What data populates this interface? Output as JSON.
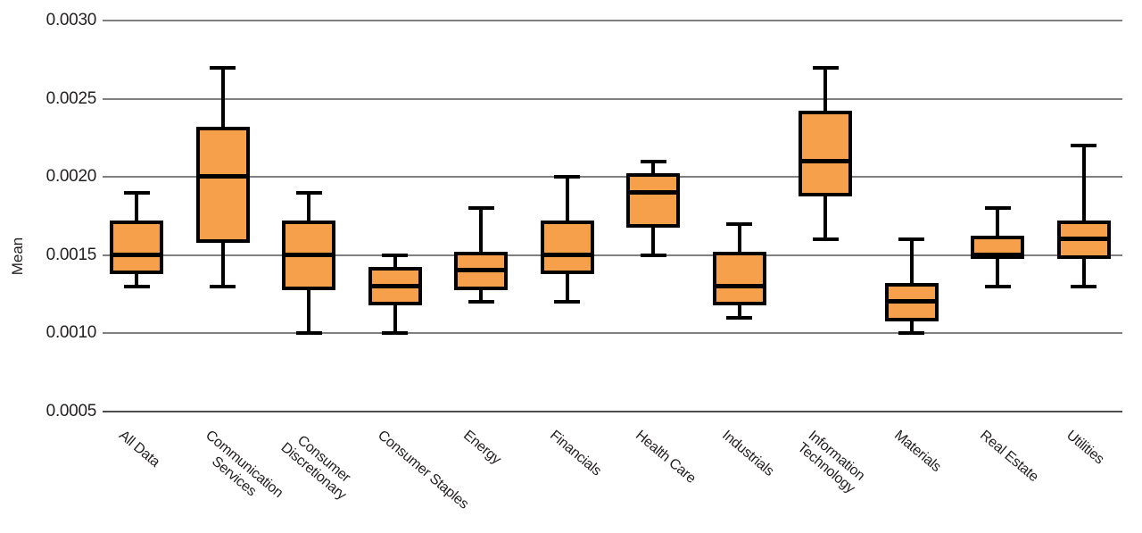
{
  "chart_data": {
    "type": "box",
    "title": "",
    "xlabel": "",
    "ylabel": "Mean",
    "ylim": [
      0.0005,
      0.003
    ],
    "grid": true,
    "legend": "none",
    "colors": {
      "box_fill": "#F7A04B",
      "box_edge": "#000000",
      "median": "#000000",
      "whisker": "#000000",
      "gridline": "#808080",
      "axis_line": "#4D4D4D",
      "text": "#231F20"
    },
    "y_ticks": [
      {
        "value": 0.003,
        "label": "0.0030"
      },
      {
        "value": 0.0025,
        "label": "0.0025"
      },
      {
        "value": 0.002,
        "label": "0.0020"
      },
      {
        "value": 0.0015,
        "label": "0.0015"
      },
      {
        "value": 0.001,
        "label": "0.0010"
      },
      {
        "value": 0.0005,
        "label": "0.0005"
      }
    ],
    "categories": [
      "All Data",
      "Communication Services",
      "Consumer Discretionary",
      "Consumer Staples",
      "Energy",
      "Financials",
      "Health Care",
      "Industrials",
      "Information Technology",
      "Materials",
      "Real Estate",
      "Utilities"
    ],
    "series": [
      {
        "name": "All Data",
        "label_lines": [
          "All Data"
        ],
        "min": 0.0013,
        "q1": 0.0014,
        "median": 0.0015,
        "q3": 0.0017,
        "max": 0.0019
      },
      {
        "name": "Communication Services",
        "label_lines": [
          "Communication",
          "Services"
        ],
        "min": 0.0013,
        "q1": 0.0016,
        "median": 0.002,
        "q3": 0.0023,
        "max": 0.0027
      },
      {
        "name": "Consumer Discretionary",
        "label_lines": [
          "Consumer",
          "Discretionary"
        ],
        "min": 0.001,
        "q1": 0.0013,
        "median": 0.0015,
        "q3": 0.0017,
        "max": 0.0019
      },
      {
        "name": "Consumer Staples",
        "label_lines": [
          "Consumer Staples"
        ],
        "min": 0.001,
        "q1": 0.0012,
        "median": 0.0013,
        "q3": 0.0014,
        "max": 0.0015
      },
      {
        "name": "Energy",
        "label_lines": [
          "Energy"
        ],
        "min": 0.0012,
        "q1": 0.0013,
        "median": 0.0014,
        "q3": 0.0015,
        "max": 0.0018
      },
      {
        "name": "Financials",
        "label_lines": [
          "Financials"
        ],
        "min": 0.0012,
        "q1": 0.0014,
        "median": 0.0015,
        "q3": 0.0017,
        "max": 0.002
      },
      {
        "name": "Health Care",
        "label_lines": [
          "Health Care"
        ],
        "min": 0.0015,
        "q1": 0.0017,
        "median": 0.0019,
        "q3": 0.002,
        "max": 0.0021
      },
      {
        "name": "Industrials",
        "label_lines": [
          "Industrials"
        ],
        "min": 0.0011,
        "q1": 0.0012,
        "median": 0.0013,
        "q3": 0.0015,
        "max": 0.0017
      },
      {
        "name": "Information Technology",
        "label_lines": [
          "Information",
          "Technology"
        ],
        "min": 0.0016,
        "q1": 0.0019,
        "median": 0.0021,
        "q3": 0.0024,
        "max": 0.0027
      },
      {
        "name": "Materials",
        "label_lines": [
          "Materials"
        ],
        "min": 0.001,
        "q1": 0.0011,
        "median": 0.0012,
        "q3": 0.0013,
        "max": 0.0016
      },
      {
        "name": "Real Estate",
        "label_lines": [
          "Real Estate"
        ],
        "min": 0.0013,
        "q1": 0.0015,
        "median": 0.0015,
        "q3": 0.0016,
        "max": 0.0018
      },
      {
        "name": "Utilities",
        "label_lines": [
          "Utilities"
        ],
        "min": 0.0013,
        "q1": 0.0015,
        "median": 0.0016,
        "q3": 0.0017,
        "max": 0.0022
      }
    ]
  }
}
